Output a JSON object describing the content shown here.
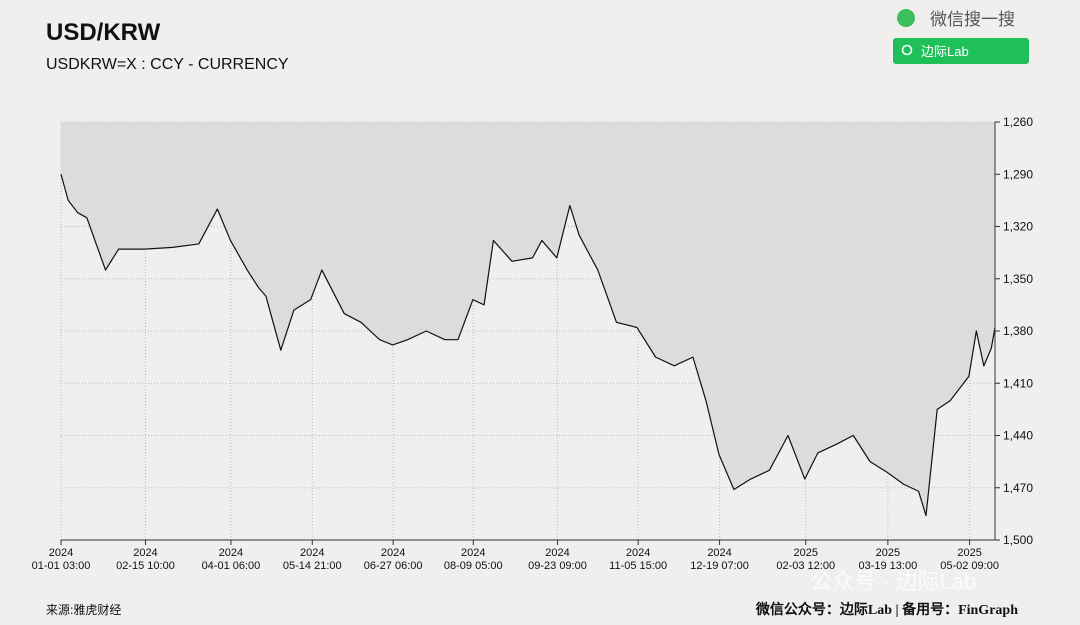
{
  "chart_data": {
    "type": "line",
    "title": "USD/KRW",
    "subtitle": "USDKRW=X : CCY - CURRENCY",
    "source": "来源:雅虎财经",
    "footer": "微信公众号：边际Lab  |  备用号：FinGraph",
    "search_label": "微信搜一搜",
    "search_button": "边际Lab",
    "watermark": "公众号 · 边际Lab",
    "invert_y": true,
    "grid": true,
    "area_color": "#dcdcdc",
    "line_color": "#111111",
    "xlim": [
      "2024-01-01 03:00",
      "2025-05-16 00:00"
    ],
    "xticks": [
      {
        "value": "2024-01-01 03:00",
        "label": [
          "2024",
          "01-01 03:00"
        ]
      },
      {
        "value": "2024-02-15 10:00",
        "label": [
          "2024",
          "02-15 10:00"
        ]
      },
      {
        "value": "2024-04-01 06:00",
        "label": [
          "2024",
          "04-01 06:00"
        ]
      },
      {
        "value": "2024-05-14 21:00",
        "label": [
          "2024",
          "05-14 21:00"
        ]
      },
      {
        "value": "2024-06-27 06:00",
        "label": [
          "2024",
          "06-27 06:00"
        ]
      },
      {
        "value": "2024-08-09 05:00",
        "label": [
          "2024",
          "08-09 05:00"
        ]
      },
      {
        "value": "2024-09-23 09:00",
        "label": [
          "2024",
          "09-23 09:00"
        ]
      },
      {
        "value": "2024-11-05 15:00",
        "label": [
          "2024",
          "11-05 15:00"
        ]
      },
      {
        "value": "2024-12-19 07:00",
        "label": [
          "2024",
          "12-19 07:00"
        ]
      },
      {
        "value": "2025-02-03 12:00",
        "label": [
          "2025",
          "02-03 12:00"
        ]
      },
      {
        "value": "2025-03-19 13:00",
        "label": [
          "2025",
          "03-19 13:00"
        ]
      },
      {
        "value": "2025-05-02 09:00",
        "label": [
          "2025",
          "05-02 09:00"
        ]
      }
    ],
    "ylim": [
      1260,
      1500
    ],
    "yticks": [
      {
        "value": 1260,
        "label": "1,260"
      },
      {
        "value": 1290,
        "label": "1,290"
      },
      {
        "value": 1320,
        "label": "1,320"
      },
      {
        "value": 1350,
        "label": "1,350"
      },
      {
        "value": 1380,
        "label": "1,380"
      },
      {
        "value": 1410,
        "label": "1,410"
      },
      {
        "value": 1440,
        "label": "1,440"
      },
      {
        "value": 1470,
        "label": "1,470"
      },
      {
        "value": 1500,
        "label": "1,500"
      }
    ],
    "x": [
      "2024-01-01 03:00",
      "2024-01-05 00:00",
      "2024-01-10 00:00",
      "2024-01-15 00:00",
      "2024-01-20 00:00",
      "2024-01-25 00:00",
      "2024-02-01 00:00",
      "2024-02-15 00:00",
      "2024-03-01 00:00",
      "2024-03-15 00:00",
      "2024-03-25 00:00",
      "2024-04-01 00:00",
      "2024-04-10 00:00",
      "2024-04-16 00:00",
      "2024-04-20 00:00",
      "2024-04-28 00:00",
      "2024-05-05 00:00",
      "2024-05-14 00:00",
      "2024-05-20 00:00",
      "2024-06-01 00:00",
      "2024-06-10 00:00",
      "2024-06-20 00:00",
      "2024-06-27 00:00",
      "2024-07-05 00:00",
      "2024-07-15 00:00",
      "2024-07-25 00:00",
      "2024-08-01 00:00",
      "2024-08-09 00:00",
      "2024-08-15 00:00",
      "2024-08-20 00:00",
      "2024-08-30 00:00",
      "2024-09-10 00:00",
      "2024-09-15 00:00",
      "2024-09-23 00:00",
      "2024-09-30 00:00",
      "2024-10-05 00:00",
      "2024-10-15 00:00",
      "2024-10-25 00:00",
      "2024-11-05 00:00",
      "2024-11-15 00:00",
      "2024-11-25 00:00",
      "2024-12-05 00:00",
      "2024-12-12 00:00",
      "2024-12-19 00:00",
      "2024-12-27 00:00",
      "2025-01-05 00:00",
      "2025-01-15 00:00",
      "2025-01-25 00:00",
      "2025-02-03 00:00",
      "2025-02-10 00:00",
      "2025-02-20 00:00",
      "2025-03-01 00:00",
      "2025-03-10 00:00",
      "2025-03-19 00:00",
      "2025-03-28 00:00",
      "2025-04-05 00:00",
      "2025-04-09 00:00",
      "2025-04-15 00:00",
      "2025-04-22 00:00",
      "2025-05-02 00:00",
      "2025-05-06 00:00",
      "2025-05-10 00:00",
      "2025-05-14 00:00",
      "2025-05-16 00:00"
    ],
    "series": [
      {
        "name": "USDKRW=X",
        "values": [
          1290,
          1305,
          1312,
          1315,
          1330,
          1345,
          1333,
          1333,
          1332,
          1330,
          1310,
          1328,
          1345,
          1355,
          1360,
          1391,
          1368,
          1362,
          1345,
          1370,
          1375,
          1385,
          1388,
          1385,
          1380,
          1385,
          1385,
          1362,
          1365,
          1328,
          1340,
          1338,
          1328,
          1338,
          1308,
          1325,
          1345,
          1375,
          1378,
          1395,
          1400,
          1395,
          1420,
          1451,
          1471,
          1465,
          1460,
          1440,
          1465,
          1450,
          1445,
          1440,
          1455,
          1461,
          1468,
          1472,
          1486,
          1425,
          1420,
          1406,
          1380,
          1400,
          1390,
          1378
        ]
      }
    ]
  }
}
